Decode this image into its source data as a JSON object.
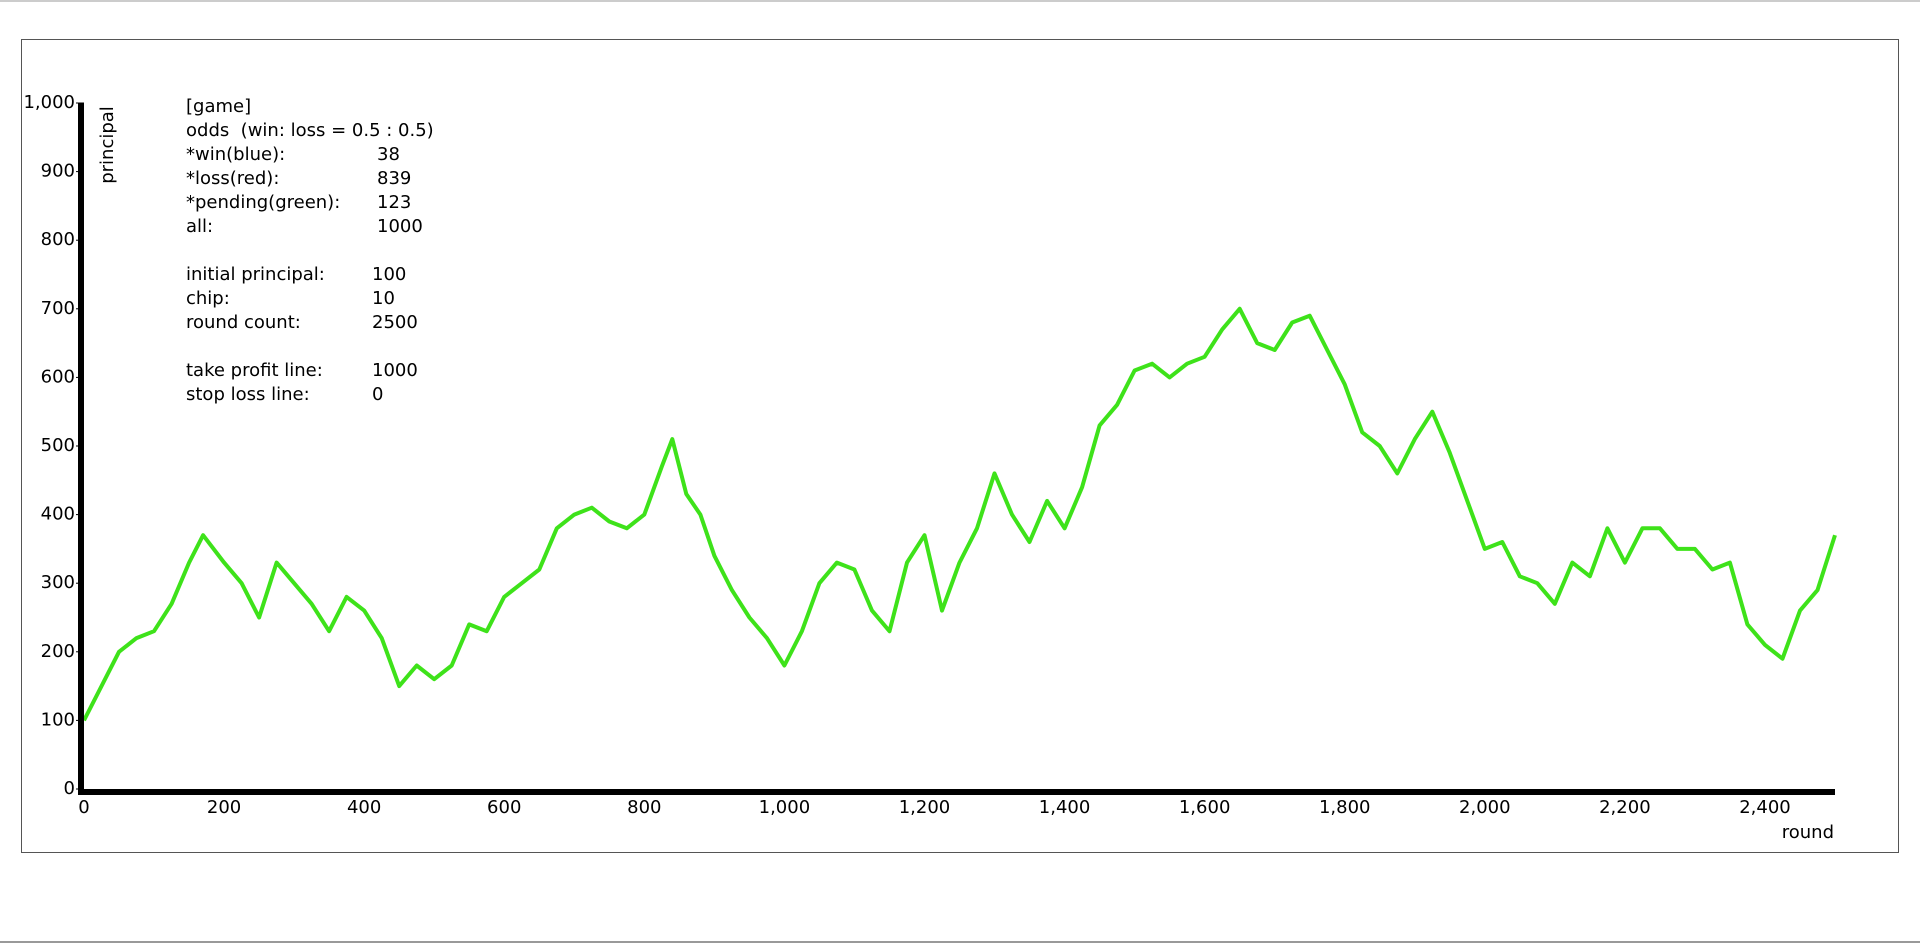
{
  "chart_data": {
    "type": "line",
    "x_label": "round",
    "y_label": "principal",
    "xlim": [
      0,
      2500
    ],
    "ylim": [
      0,
      1000
    ],
    "xticks": [
      0,
      200,
      400,
      600,
      800,
      {
        "value": 1000,
        "label": "1,000"
      },
      {
        "value": 1200,
        "label": "1,200"
      },
      {
        "value": 1400,
        "label": "1,400"
      },
      {
        "value": 1600,
        "label": "1,600"
      },
      {
        "value": 1800,
        "label": "1,800"
      },
      {
        "value": 2000,
        "label": "2,000"
      },
      {
        "value": 2200,
        "label": "2,200"
      },
      {
        "value": 2400,
        "label": "2,400"
      }
    ],
    "yticks": [
      0,
      100,
      200,
      300,
      400,
      500,
      600,
      700,
      800,
      900,
      {
        "value": 1000,
        "label": "1,000"
      }
    ],
    "annotations": {
      "heading": "[game]",
      "odds": "odds  (win: loss = 0.5 : 0.5)",
      "rows": [
        [
          "*win(blue):",
          38
        ],
        [
          "*loss(red):",
          839
        ],
        [
          "*pending(green):",
          123
        ],
        [
          "all:",
          1000
        ],
        [
          "initial principal:",
          100
        ],
        [
          "chip:",
          10
        ],
        [
          "round count:",
          2500
        ],
        [
          "take profit line:",
          1000
        ],
        [
          "stop loss line:",
          0
        ]
      ]
    },
    "x": [
      0,
      25,
      50,
      75,
      100,
      125,
      150,
      170,
      200,
      225,
      250,
      275,
      300,
      325,
      350,
      375,
      400,
      425,
      450,
      475,
      500,
      525,
      550,
      575,
      600,
      625,
      650,
      675,
      700,
      725,
      750,
      775,
      800,
      825,
      840,
      860,
      880,
      900,
      925,
      950,
      975,
      1000,
      1025,
      1050,
      1075,
      1100,
      1125,
      1150,
      1175,
      1200,
      1225,
      1250,
      1275,
      1300,
      1325,
      1350,
      1375,
      1400,
      1425,
      1450,
      1475,
      1500,
      1525,
      1550,
      1575,
      1600,
      1625,
      1650,
      1675,
      1700,
      1725,
      1750,
      1775,
      1800,
      1825,
      1850,
      1875,
      1900,
      1925,
      1950,
      1975,
      2000,
      2025,
      2050,
      2075,
      2100,
      2125,
      2150,
      2175,
      2200,
      2225,
      2250,
      2275,
      2300,
      2325,
      2350,
      2375,
      2400,
      2425,
      2450,
      2475,
      2500
    ],
    "series": [
      {
        "color": "#3ee21a",
        "values": [
          100,
          150,
          200,
          220,
          230,
          270,
          330,
          370,
          330,
          300,
          250,
          330,
          300,
          270,
          230,
          280,
          260,
          220,
          150,
          180,
          160,
          180,
          240,
          230,
          280,
          300,
          320,
          380,
          400,
          410,
          390,
          380,
          400,
          470,
          510,
          430,
          400,
          340,
          290,
          250,
          220,
          180,
          230,
          300,
          330,
          320,
          260,
          230,
          330,
          370,
          260,
          330,
          380,
          460,
          400,
          360,
          420,
          380,
          440,
          530,
          560,
          610,
          620,
          600,
          620,
          630,
          670,
          700,
          650,
          640,
          680,
          690,
          640,
          590,
          520,
          500,
          460,
          510,
          550,
          490,
          420,
          350,
          360,
          310,
          300,
          270,
          330,
          310,
          380,
          330,
          380,
          380,
          350,
          350,
          320,
          330,
          240,
          210,
          190,
          260,
          290,
          370
        ]
      }
    ]
  }
}
